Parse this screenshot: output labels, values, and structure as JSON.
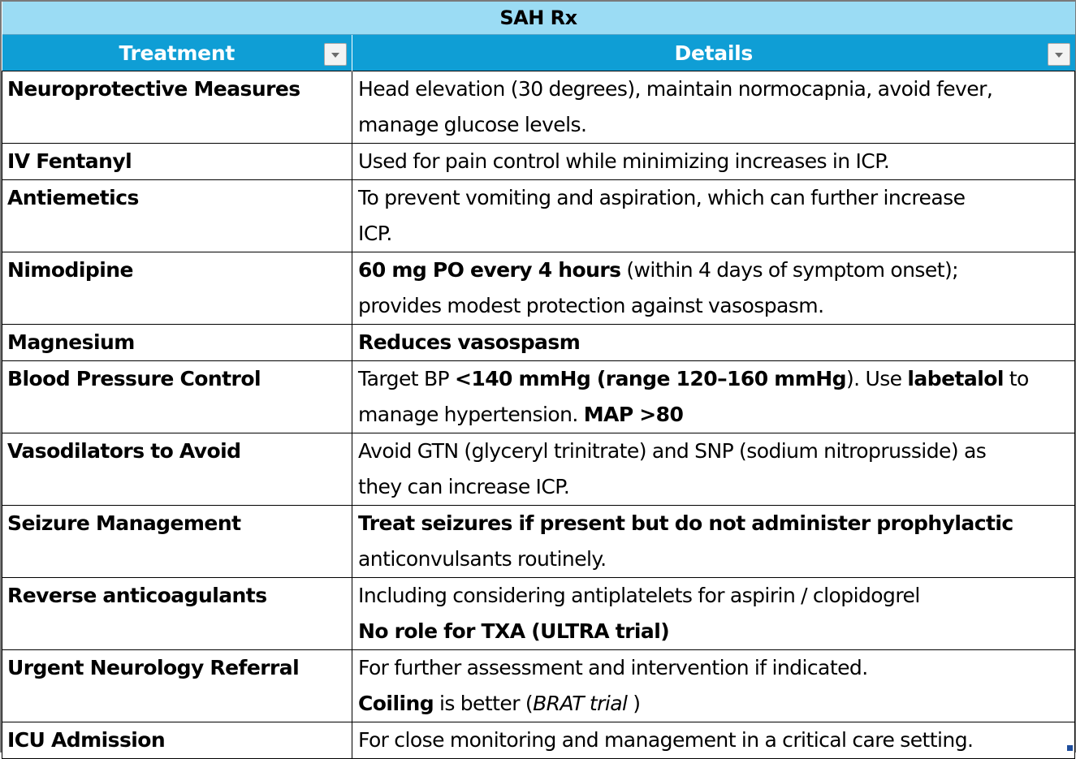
{
  "title": "SAH Rx",
  "headers": {
    "treatment": "Treatment",
    "details": "Details"
  },
  "rows": [
    {
      "treatment": "Neuroprotective Measures",
      "details": {
        "line1": "Head elevation (30 degrees), maintain normocapnia, avoid fever,",
        "line2": "manage glucose levels."
      }
    },
    {
      "treatment": "IV Fentanyl",
      "details": {
        "line1": "Used for pain control while minimizing increases in ICP."
      }
    },
    {
      "treatment": "Antiemetics",
      "details": {
        "line1": "To prevent vomiting and aspiration, which can further increase",
        "line2": "ICP."
      }
    },
    {
      "treatment": "Nimodipine",
      "details": {
        "line1_bold": "60 mg PO every 4 hours",
        "line1_rest": " (within 4 days of symptom onset);",
        "line2": "provides modest protection against vasospasm."
      }
    },
    {
      "treatment": "Magnesium",
      "details": {
        "line1_bold": "Reduces vasospasm"
      }
    },
    {
      "treatment": "Blood Pressure Control",
      "details": {
        "line1_a": "Target BP ",
        "line1_b_bold": "<140 mmHg (range 120–160 mmHg",
        "line1_c": "). Use ",
        "line1_d_bold": "labetalol",
        "line1_e": " to",
        "line2_a": "manage hypertension. ",
        "line2_b_bold": "MAP >80"
      }
    },
    {
      "treatment": "Vasodilators to Avoid",
      "details": {
        "line1": "Avoid GTN (glyceryl trinitrate) and SNP (sodium nitroprusside) as",
        "line2": "they can increase ICP."
      }
    },
    {
      "treatment": "Seizure Management",
      "details": {
        "line1_bold": "Treat seizures if present but do not administer prophylactic",
        "line2": "anticonvulsants routinely."
      }
    },
    {
      "treatment": "Reverse anticoagulants",
      "details": {
        "line1": "Including considering antiplatelets for aspirin / clopidogrel",
        "line2_bold": "No role for TXA (ULTRA trial)"
      }
    },
    {
      "treatment": "Urgent Neurology Referral",
      "details": {
        "line1": "For further assessment and intervention if indicated.",
        "line2_bold": "Coiling",
        "line2_a": " is better (",
        "line2_italic": "BRAT trial ",
        "line2_b": ")"
      }
    },
    {
      "treatment": "ICU Admission",
      "details": {
        "line1": "For close monitoring and management in a critical care setting."
      }
    }
  ]
}
